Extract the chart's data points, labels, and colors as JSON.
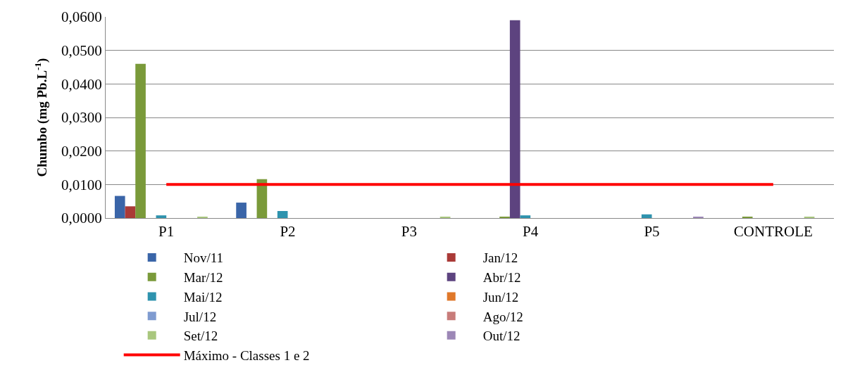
{
  "chart_data": {
    "type": "bar",
    "ylabel": "Chumbo (mg Pb.L$^{-1}$)",
    "categories": [
      "P1",
      "P2",
      "P3",
      "P4",
      "P5",
      "CONTROLE"
    ],
    "series": [
      {
        "name": "Nov/11",
        "color": "#3a65a8",
        "values": [
          0.0066,
          0.0046,
          null,
          null,
          null,
          null
        ]
      },
      {
        "name": "Jan/12",
        "color": "#aa3a37",
        "values": [
          0.0035,
          null,
          null,
          null,
          null,
          null
        ]
      },
      {
        "name": "Mar/12",
        "color": "#7a9a3a",
        "values": [
          0.046,
          0.0116,
          null,
          0.0003,
          null,
          0.0003
        ]
      },
      {
        "name": "Abr/12",
        "color": "#5d437f",
        "values": [
          null,
          null,
          null,
          0.059,
          null,
          null
        ]
      },
      {
        "name": "Mai/12",
        "color": "#2e93ae",
        "values": [
          0.0008,
          0.0021,
          null,
          0.0008,
          0.0011,
          null
        ]
      },
      {
        "name": "Jun/12",
        "color": "#e0782a",
        "values": [
          null,
          null,
          null,
          null,
          null,
          null
        ]
      },
      {
        "name": "Jul/12",
        "color": "#7f9bd0",
        "values": [
          null,
          null,
          null,
          null,
          null,
          null
        ]
      },
      {
        "name": "Ago/12",
        "color": "#c87c7a",
        "values": [
          null,
          null,
          null,
          null,
          null,
          null
        ]
      },
      {
        "name": "Set/12",
        "color": "#a9c77e",
        "values": [
          0.0003,
          null,
          0.0003,
          null,
          null,
          0.0003
        ]
      },
      {
        "name": "Out/12",
        "color": "#9c87b6",
        "values": [
          null,
          null,
          null,
          null,
          0.0004,
          null
        ]
      },
      {
        "name": "Máximo - Classes 1 e 2",
        "type": "line",
        "color": "#ff0000",
        "values": [
          0.01,
          0.01,
          0.01,
          0.01,
          0.01,
          0.01
        ]
      }
    ],
    "ylim": [
      0,
      0.06
    ],
    "yticks": [
      {
        "value": 0,
        "label": "0,0000"
      },
      {
        "value": 0.01,
        "label": "0,0100"
      },
      {
        "value": 0.02,
        "label": "0,0200"
      },
      {
        "value": 0.03,
        "label": "0,0300"
      },
      {
        "value": 0.04,
        "label": "0,0400"
      },
      {
        "value": 0.05,
        "label": "0,0500"
      },
      {
        "value": 0.06,
        "label": "0,0600"
      }
    ],
    "grid": "y",
    "legend": "bottom"
  }
}
